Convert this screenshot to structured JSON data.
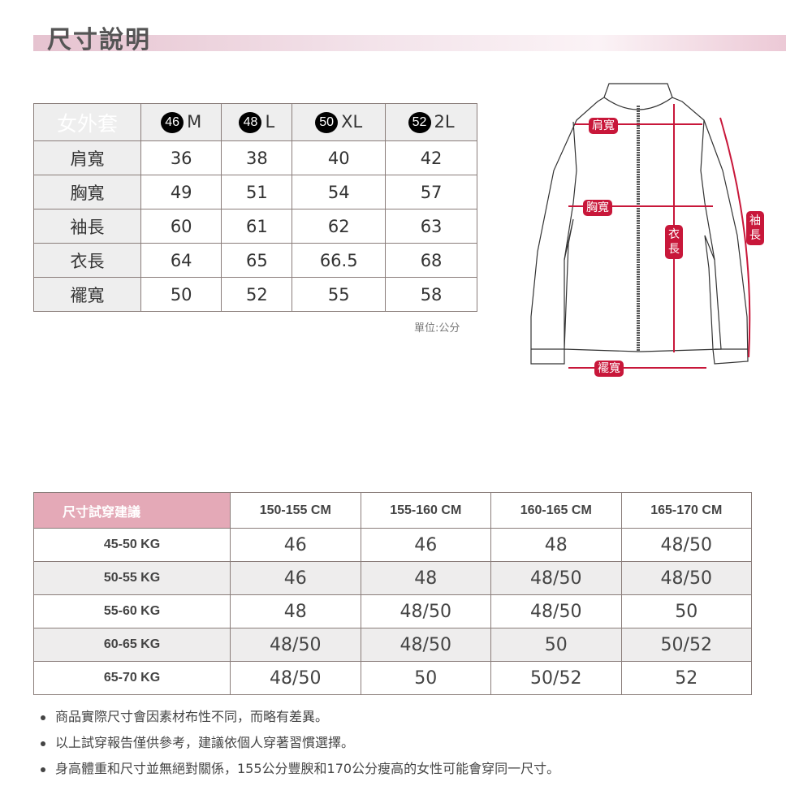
{
  "title": "尺寸說明",
  "size_table": {
    "header": "女外套",
    "sizes": [
      {
        "num": "46",
        "label": "M"
      },
      {
        "num": "48",
        "label": "L"
      },
      {
        "num": "50",
        "label": "XL"
      },
      {
        "num": "52",
        "label": "2L"
      }
    ],
    "rows": [
      {
        "label": "肩寬",
        "values": [
          "36",
          "38",
          "40",
          "42"
        ]
      },
      {
        "label": "胸寬",
        "values": [
          "49",
          "51",
          "54",
          "57"
        ]
      },
      {
        "label": "袖長",
        "values": [
          "60",
          "61",
          "62",
          "63"
        ]
      },
      {
        "label": "衣長",
        "values": [
          "64",
          "65",
          "66.5",
          "68"
        ]
      },
      {
        "label": "襬寬",
        "values": [
          "50",
          "52",
          "55",
          "58"
        ]
      }
    ],
    "unit": "單位:公分"
  },
  "diagram": {
    "shoulder": "肩寬",
    "chest": "胸寬",
    "length": "衣長",
    "sleeve": "袖長",
    "hem": "襬寬",
    "accent": "#c8173a"
  },
  "fit_table": {
    "header": "尺寸試穿建議",
    "heights": [
      "150-155 CM",
      "155-160 CM",
      "160-165 CM",
      "165-170 CM"
    ],
    "rows": [
      {
        "weight": "45-50 KG",
        "values": [
          "46",
          "46",
          "48",
          "48/50"
        ]
      },
      {
        "weight": "50-55 KG",
        "values": [
          "46",
          "48",
          "48/50",
          "48/50"
        ]
      },
      {
        "weight": "55-60 KG",
        "values": [
          "48",
          "48/50",
          "48/50",
          "50"
        ]
      },
      {
        "weight": "60-65 KG",
        "values": [
          "48/50",
          "48/50",
          "50",
          "50/52"
        ]
      },
      {
        "weight": "65-70 KG",
        "values": [
          "48/50",
          "50",
          "50/52",
          "52"
        ]
      }
    ]
  },
  "notes": [
    "商品實際尺寸會因素材布性不同，而略有差異。",
    "以上試穿報告僅供參考，建議依個人穿著習慣選擇。",
    "身高體重和尺寸並無絕對關係，155公分豐腴和170公分瘦高的女性可能會穿同一尺寸。"
  ]
}
